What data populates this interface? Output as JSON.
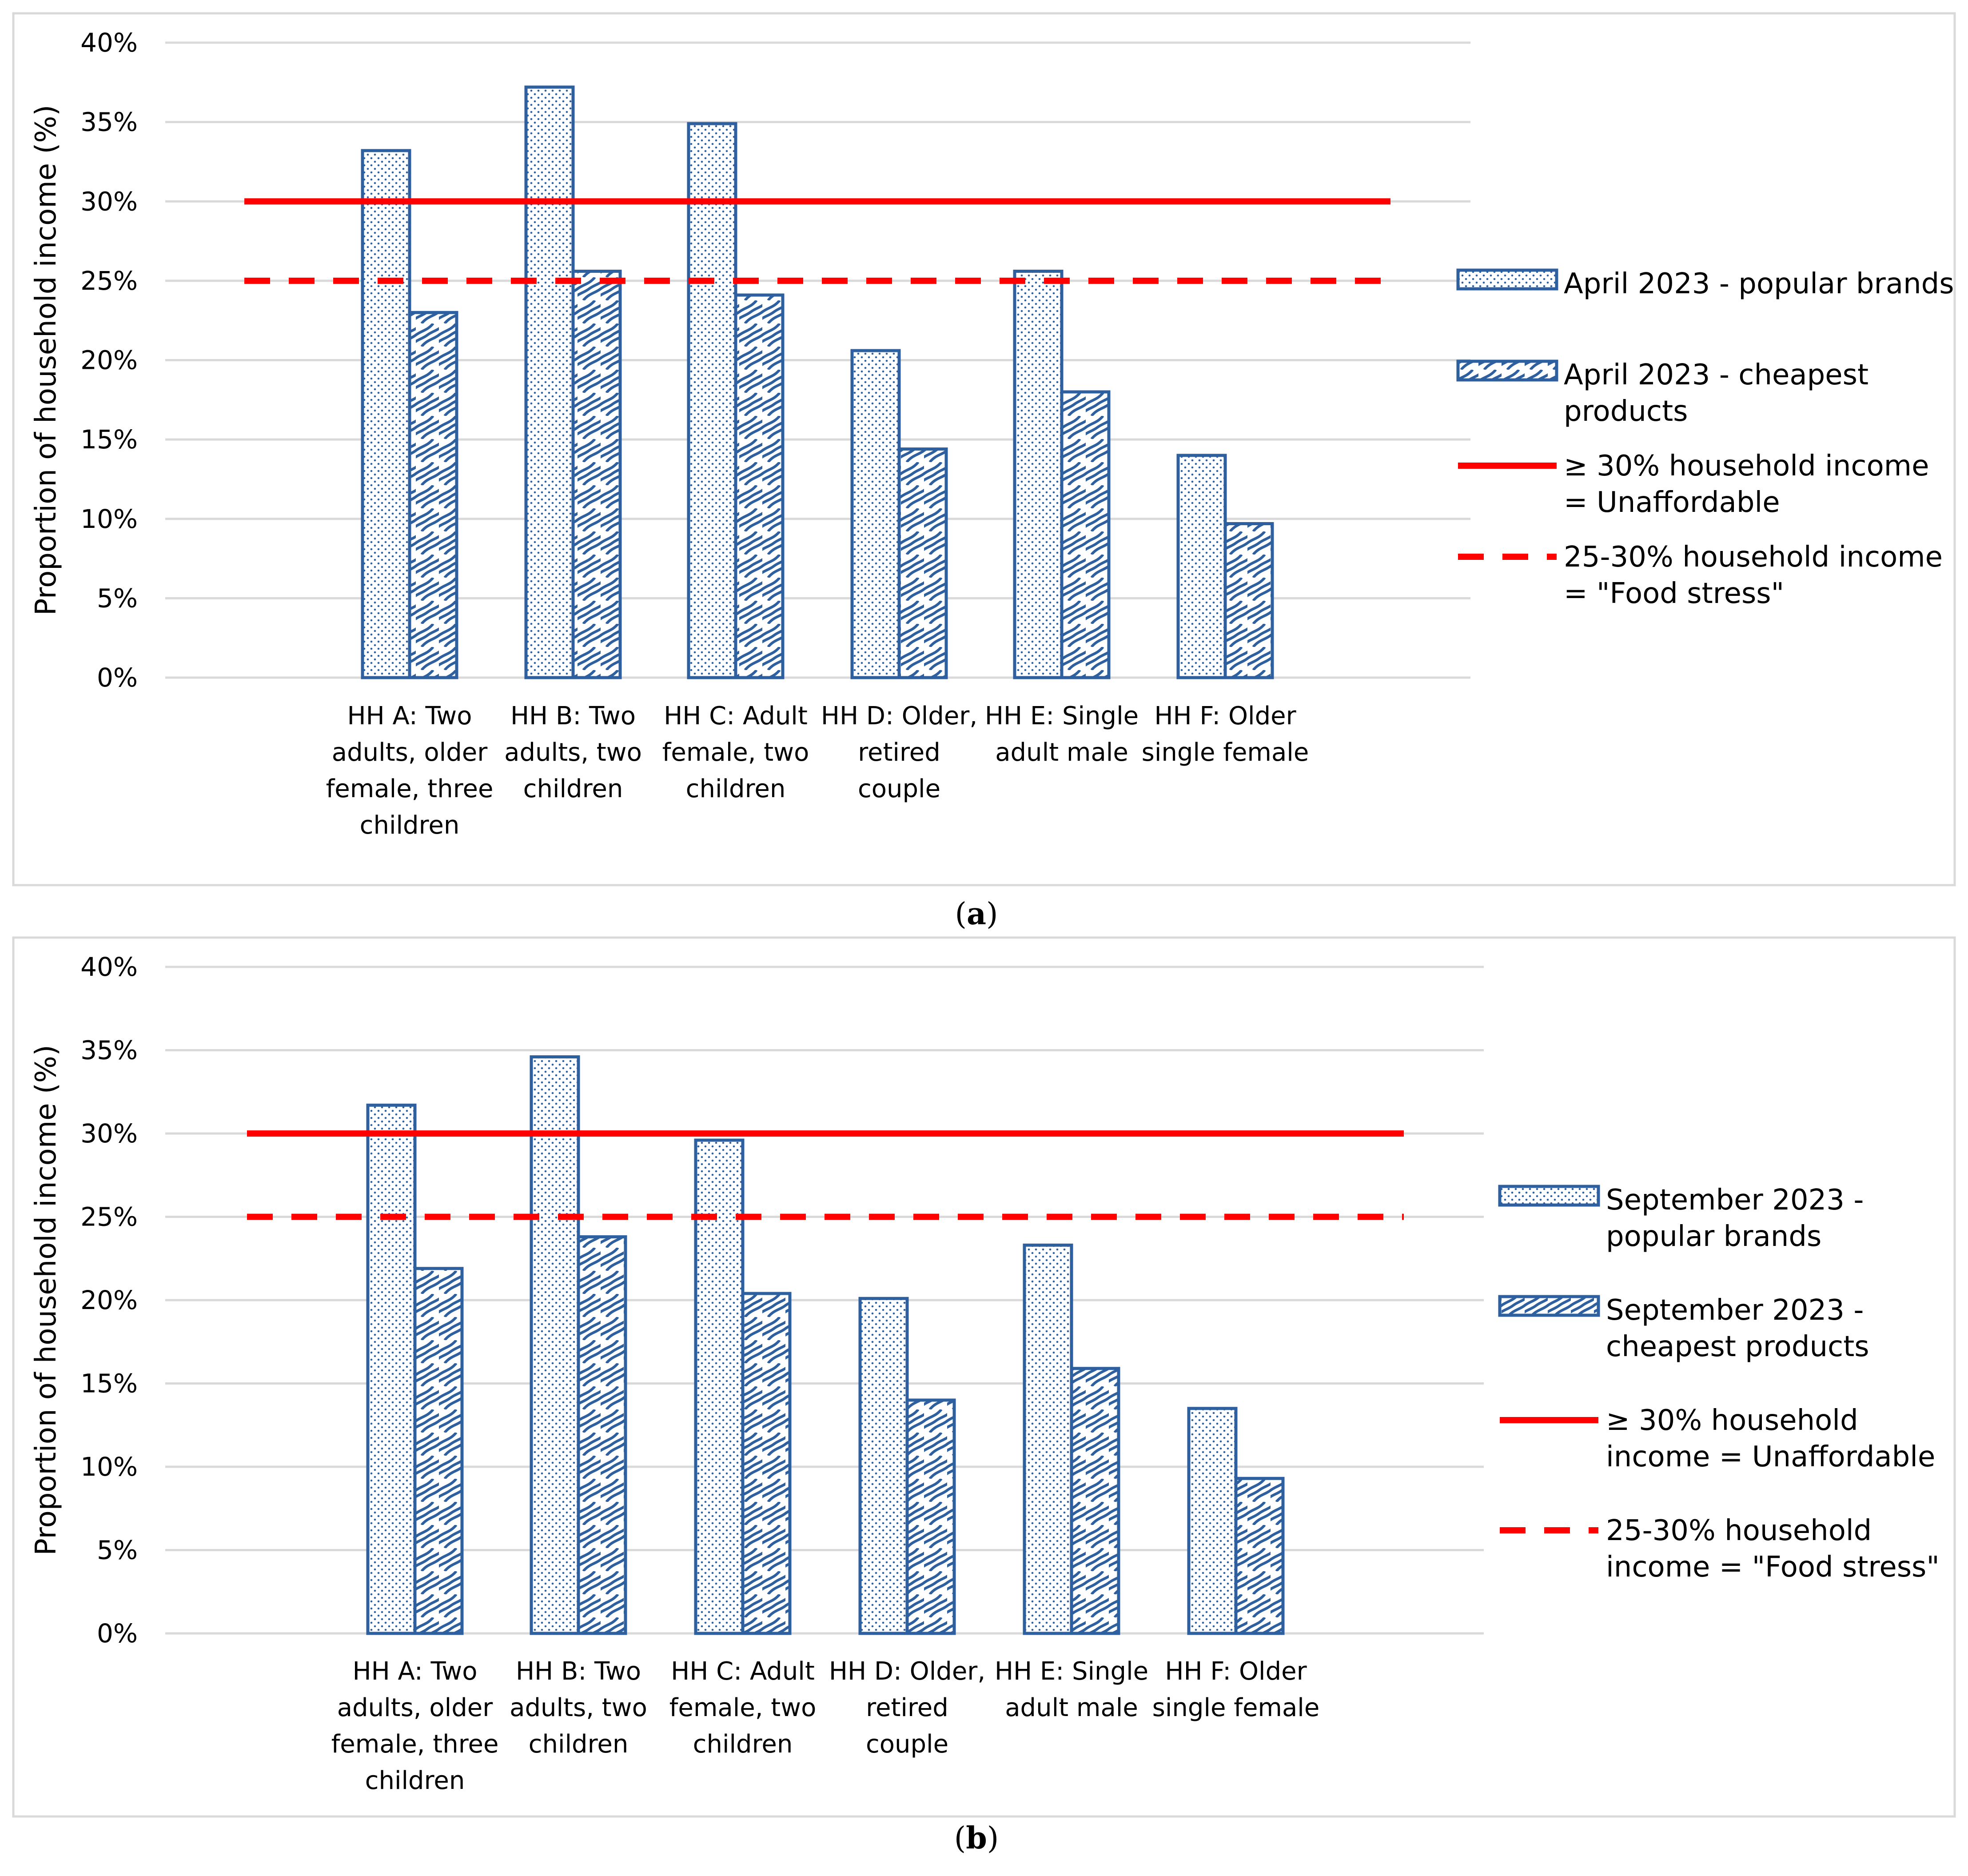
{
  "chart_data": [
    {
      "type": "bar",
      "panel": "a",
      "ylabel": "Proportion of household income (%)",
      "ylim": [
        0,
        40
      ],
      "yticks": [
        "0%",
        "5%",
        "10%",
        "15%",
        "20%",
        "25%",
        "30%",
        "35%",
        "40%"
      ],
      "categories": [
        [
          "HH A: Two",
          "adults, older",
          "female, three",
          "children"
        ],
        [
          "HH B: Two",
          "adults, two",
          "children"
        ],
        [
          "HH C: Adult",
          "female, two",
          "children"
        ],
        [
          "HH D: Older,",
          "retired",
          "couple"
        ],
        [
          "HH E: Single",
          "adult male"
        ],
        [
          "HH F: Older",
          "single female"
        ]
      ],
      "series": [
        {
          "name": [
            "April 2023 -  popular brands"
          ],
          "pattern": "dots",
          "values": [
            33.2,
            37.2,
            34.9,
            20.6,
            25.6,
            14.0
          ]
        },
        {
          "name": [
            "April 2023 - cheapest",
            "products"
          ],
          "pattern": "waves",
          "values": [
            23.0,
            25.6,
            24.1,
            14.4,
            18.0,
            9.7
          ]
        }
      ],
      "reference_lines": [
        {
          "name": [
            "≥ 30% household income",
            "= Unaffordable"
          ],
          "value": 30,
          "style": "solid",
          "color": "#ff0000"
        },
        {
          "name": [
            "25-30% household income",
            "= \"Food stress\""
          ],
          "value": 25,
          "style": "dashed",
          "color": "#ff0000"
        }
      ],
      "caption_letter": "a",
      "legend_position": "right"
    },
    {
      "type": "bar",
      "panel": "b",
      "ylabel": "Proportion of household income (%)",
      "ylim": [
        0,
        40
      ],
      "yticks": [
        "0%",
        "5%",
        "10%",
        "15%",
        "20%",
        "25%",
        "30%",
        "35%",
        "40%"
      ],
      "categories": [
        [
          "HH A: Two",
          "adults, older",
          "female, three",
          "children"
        ],
        [
          "HH B: Two",
          "adults, two",
          "children"
        ],
        [
          "HH C: Adult",
          "female, two",
          "children"
        ],
        [
          "HH D: Older,",
          "retired",
          "couple"
        ],
        [
          "HH E: Single",
          "adult male"
        ],
        [
          "HH F: Older",
          "single female"
        ]
      ],
      "series": [
        {
          "name": [
            "September 2023 -",
            "popular brands"
          ],
          "pattern": "dots",
          "values": [
            31.7,
            34.6,
            29.6,
            20.1,
            23.3,
            13.5
          ]
        },
        {
          "name": [
            "September 2023 -",
            "cheapest products"
          ],
          "pattern": "waves",
          "values": [
            21.9,
            23.8,
            20.4,
            14.0,
            15.9,
            9.3
          ]
        }
      ],
      "reference_lines": [
        {
          "name": [
            "≥ 30% household",
            "income = Unaffordable"
          ],
          "value": 30,
          "style": "solid",
          "color": "#ff0000"
        },
        {
          "name": [
            "25-30% household",
            "income = \"Food stress\""
          ],
          "value": 25,
          "style": "dashed",
          "color": "#ff0000"
        }
      ],
      "caption_letter": "b",
      "legend_position": "right"
    }
  ],
  "colors": {
    "bar_outline": "#2e5f9e",
    "bar_pattern": "#2e5f9e",
    "reference": "#ff0000",
    "grid": "#d9d9d9"
  }
}
